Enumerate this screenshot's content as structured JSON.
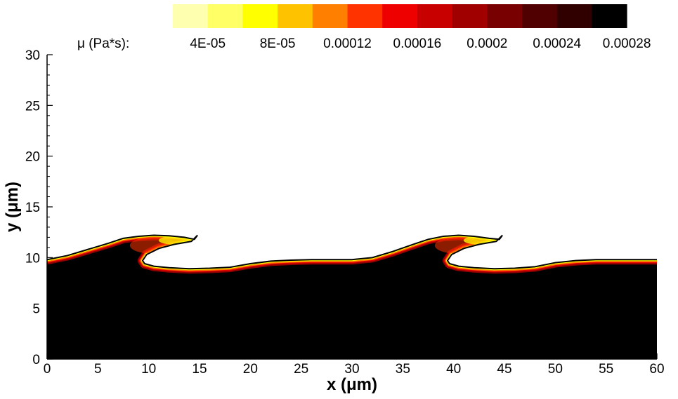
{
  "chart_data": {
    "type": "heatmap",
    "xlabel": "x (μm)",
    "ylabel": "y (μm)",
    "xlim": [
      0,
      60
    ],
    "ylim": [
      0,
      30
    ],
    "x_ticks": [
      "0",
      "5",
      "10",
      "15",
      "20",
      "25",
      "30",
      "35",
      "40",
      "45",
      "50",
      "55",
      "60"
    ],
    "y_ticks": [
      "0",
      "5",
      "10",
      "15",
      "20",
      "25",
      "30"
    ],
    "colorbar": {
      "title": "μ (Pa*s):",
      "labels": [
        "4E-05",
        "8E-05",
        "0.00012",
        "0.00016",
        "0.0002",
        "0.00024",
        "0.00028"
      ],
      "colors": [
        "#ffffb0",
        "#ffff66",
        "#ffff00",
        "#ffc200",
        "#ff8000",
        "#ff3300",
        "#ee0000",
        "#c80000",
        "#a00000",
        "#780000",
        "#500000",
        "#300000",
        "#000000"
      ]
    },
    "low_viscosity_color": "#ffffff",
    "high_viscosity_color": "#000000",
    "interface": {
      "x": [
        0,
        2,
        4,
        6,
        7.5,
        9,
        10.5,
        12,
        13.5,
        14.5,
        14.8,
        14.2,
        12.5,
        11,
        9.8,
        9.4,
        9.6,
        10.5,
        12,
        14,
        16,
        18,
        20,
        22,
        24,
        26,
        28,
        30,
        32,
        34,
        36,
        37.5,
        39,
        40.5,
        42,
        43.5,
        44.5,
        44.8,
        44.2,
        42.5,
        41,
        39.8,
        39.4,
        39.6,
        40.5,
        42,
        44,
        46,
        48,
        50,
        52,
        54,
        56,
        58,
        60
      ],
      "y": [
        9.8,
        10.2,
        10.8,
        11.4,
        11.9,
        12.1,
        12.2,
        12.15,
        12.0,
        11.8,
        12.2,
        11.6,
        11.3,
        10.9,
        10.3,
        9.7,
        9.4,
        9.15,
        9.0,
        8.9,
        8.95,
        9.05,
        9.4,
        9.65,
        9.75,
        9.8,
        9.8,
        9.8,
        10.0,
        10.6,
        11.3,
        11.8,
        12.1,
        12.2,
        12.1,
        11.9,
        11.8,
        12.2,
        11.6,
        11.3,
        10.9,
        10.3,
        9.7,
        9.4,
        9.15,
        9.0,
        8.9,
        8.95,
        9.1,
        9.5,
        9.7,
        9.8,
        9.8,
        9.8,
        9.8
      ]
    }
  }
}
